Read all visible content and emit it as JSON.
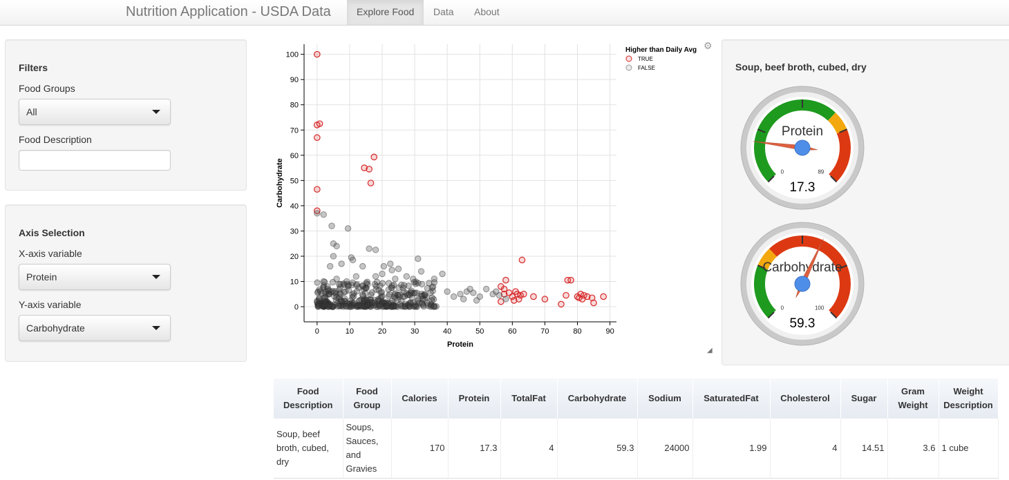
{
  "navbar": {
    "brand": "Nutrition Application - USDA Data",
    "tabs": [
      "Explore Food",
      "Data",
      "About"
    ]
  },
  "filters": {
    "title": "Filters",
    "food_groups_label": "Food Groups",
    "food_groups_value": "All",
    "food_description_label": "Food Description",
    "food_description_value": ""
  },
  "axis": {
    "title": "Axis Selection",
    "x_label": "X-axis variable",
    "x_value": "Protein",
    "y_label": "Y-axis variable",
    "y_value": "Carbohydrate"
  },
  "chart_data": {
    "type": "scatter",
    "xlabel": "Protein",
    "ylabel": "Carbohydrate",
    "xlim": [
      -4,
      92
    ],
    "ylim": [
      -6,
      104
    ],
    "xticks": [
      0,
      10,
      20,
      30,
      40,
      50,
      60,
      70,
      80,
      90
    ],
    "yticks": [
      0,
      10,
      20,
      30,
      40,
      50,
      60,
      70,
      80,
      90,
      100
    ],
    "grid": true,
    "legend": {
      "title": "Higher than Daily Avg",
      "placement": "top-right",
      "entries": [
        "TRUE",
        "FALSE"
      ]
    },
    "colors": {
      "true": "#d62728",
      "false": "#777777"
    },
    "series": [
      {
        "name": "TRUE",
        "points": [
          [
            0,
            100
          ],
          [
            0,
            72
          ],
          [
            0.8,
            72.5
          ],
          [
            0,
            67
          ],
          [
            0,
            46.5
          ],
          [
            0,
            38
          ],
          [
            14.5,
            55
          ],
          [
            16,
            54.5
          ],
          [
            17.5,
            59.3
          ],
          [
            16.5,
            49
          ],
          [
            56.5,
            8
          ],
          [
            57.5,
            7
          ],
          [
            58,
            10.5
          ],
          [
            57.5,
            5
          ],
          [
            59,
            5.5
          ],
          [
            60,
            4
          ],
          [
            61,
            6
          ],
          [
            61.5,
            5
          ],
          [
            62,
            3
          ],
          [
            62.5,
            4.5
          ],
          [
            63,
            18.5
          ],
          [
            60.5,
            2.5
          ],
          [
            63.5,
            5
          ],
          [
            66.5,
            4
          ],
          [
            56.5,
            2
          ],
          [
            70,
            3
          ],
          [
            75,
            1
          ],
          [
            76.5,
            4.5
          ],
          [
            77,
            10.5
          ],
          [
            78,
            10.5
          ],
          [
            80,
            4
          ],
          [
            80.5,
            3.5
          ],
          [
            81,
            5
          ],
          [
            82,
            4.5
          ],
          [
            81.5,
            3
          ],
          [
            83,
            4
          ],
          [
            84.5,
            3.5
          ],
          [
            85,
            1.5
          ],
          [
            88,
            4
          ]
        ]
      },
      {
        "name": "FALSE",
        "points": [
          [
            0,
            37
          ],
          [
            2,
            36.5
          ],
          [
            4.5,
            32
          ],
          [
            9.5,
            31
          ],
          [
            5,
            25
          ],
          [
            6,
            24
          ],
          [
            16,
            23
          ],
          [
            18,
            22.5
          ],
          [
            5,
            20
          ],
          [
            10.5,
            19.5
          ],
          [
            11,
            18.5
          ],
          [
            31,
            19
          ],
          [
            4,
            16
          ],
          [
            7.5,
            17
          ],
          [
            14,
            16
          ],
          [
            20.5,
            16
          ],
          [
            22.5,
            17
          ],
          [
            23,
            14.5
          ],
          [
            25,
            15
          ],
          [
            32,
            14
          ],
          [
            38.5,
            13
          ],
          [
            20,
            13
          ],
          [
            27.5,
            12
          ],
          [
            36,
            11
          ],
          [
            29.5,
            11
          ],
          [
            2,
            10
          ],
          [
            6,
            11
          ],
          [
            12,
            12
          ],
          [
            18,
            12
          ],
          [
            24,
            11
          ],
          [
            40,
            6
          ],
          [
            42,
            4
          ],
          [
            44,
            5
          ],
          [
            46,
            6
          ],
          [
            48,
            5.5
          ],
          [
            50,
            4
          ],
          [
            52,
            7
          ],
          [
            54,
            5
          ],
          [
            45,
            3
          ],
          [
            49,
            2.5
          ],
          [
            55,
            6
          ],
          [
            56,
            4.5
          ],
          [
            58,
            3
          ],
          [
            47,
            7
          ]
        ]
      }
    ]
  },
  "gauges": {
    "title": "Soup, beef broth, cubed, dry",
    "items": [
      {
        "label": "Protein",
        "value": 17.3,
        "display": "17.3",
        "min": 0,
        "max": 89,
        "min_label": "0",
        "max_label": "89",
        "green_to": 0.66,
        "orange_to": 0.75
      },
      {
        "label": "Carbohydrate",
        "value": 59.3,
        "display": "59.3",
        "min": 0,
        "max": 100,
        "min_label": "0",
        "max_label": "100",
        "green_to": 0.25,
        "orange_to": 0.34
      }
    ],
    "colors": {
      "green": "#1e9a1e",
      "orange": "#f3a80f",
      "red": "#dc3912",
      "pointer": "#dc6040",
      "hub": "#4f8ee8"
    }
  },
  "table": {
    "headers": [
      [
        "Food",
        "Description"
      ],
      [
        "Food",
        "Group"
      ],
      [
        "Calories"
      ],
      [
        "Protein"
      ],
      [
        "TotalFat"
      ],
      [
        "Carbohydrate"
      ],
      [
        "Sodium"
      ],
      [
        "SaturatedFat"
      ],
      [
        "Cholesterol"
      ],
      [
        "Sugar"
      ],
      [
        "Gram",
        "Weight"
      ],
      [
        "Weight",
        "Description"
      ]
    ],
    "row": {
      "food_description": [
        "Soup, beef",
        "broth, cubed,",
        "dry"
      ],
      "food_group": [
        "Soups,",
        "Sauces,",
        "and",
        "Gravies"
      ],
      "calories": "170",
      "protein": "17.3",
      "totalfat": "4",
      "carbohydrate": "59.3",
      "sodium": "24000",
      "saturatedfat": "1.99",
      "cholesterol": "4",
      "sugar": "14.51",
      "gram_weight": "3.6",
      "weight_description": "1 cube"
    }
  }
}
